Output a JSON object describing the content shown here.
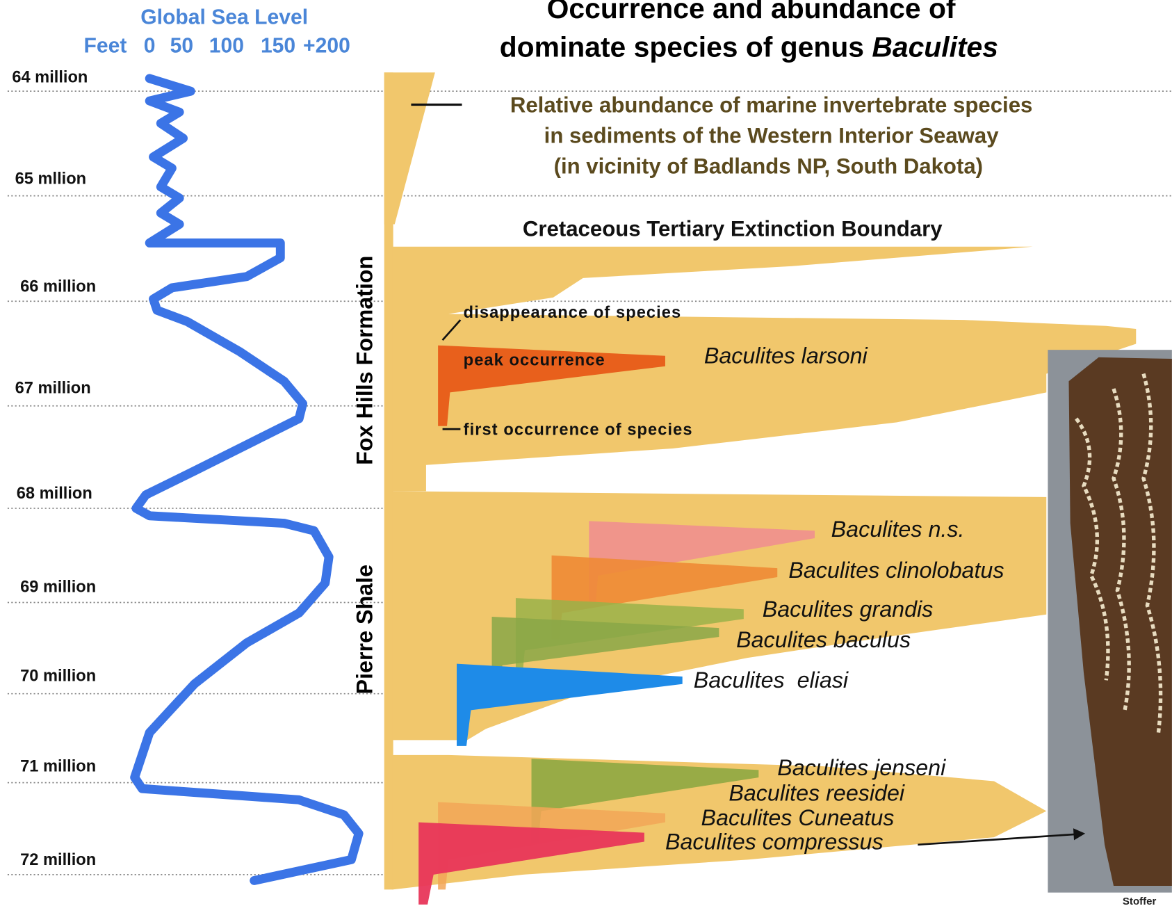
{
  "sea_level": {
    "title": "Global Sea Level",
    "unit": "Feet",
    "ticks": [
      "0",
      "50",
      "100",
      "150",
      "+200"
    ]
  },
  "title": {
    "line1": "Occurrence and abundance of",
    "line2": "dominate species of genus ",
    "genus": "Baculites"
  },
  "time_labels": [
    "64 million",
    "65 mllion",
    "66 million",
    "67 million",
    "68 million",
    "69 million",
    "70 million",
    "71 million",
    "72 million"
  ],
  "formations": [
    "Fox Hills Formation",
    "Pierre Shale"
  ],
  "annotation": [
    "Relative abundance of marine invertebrate species",
    "in sediments of the Western Interior Seaway",
    "(in vicinity of Badlands NP, South Dakota)"
  ],
  "boundary": "Cretaceous Tertiary Extinction Boundary",
  "legend_labels": {
    "disappearance": "disappearance of species",
    "peak": "peak occurrence",
    "first": "first occurrence of species"
  },
  "species": [
    "Baculites larsoni",
    "Baculites n.s.",
    "Baculites clinolobatus",
    "Baculites grandis",
    "Baculites baculus",
    "Baculites  eliasi",
    "Baculites jenseni",
    "Baculites reesidei",
    "Baculites Cuneatus",
    "Baculites compressus"
  ],
  "credit": "Stoffer"
}
